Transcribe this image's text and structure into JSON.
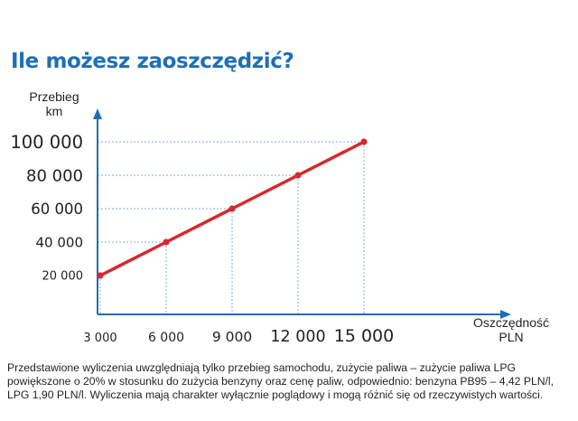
{
  "title": "Ile możesz zaoszczędzić?",
  "chart_data": {
    "type": "line",
    "title": "Ile możesz zaoszczędzić?",
    "ylabel_lines": [
      "Przebieg",
      "km"
    ],
    "xlabel_lines": [
      "Oszczędność",
      "PLN"
    ],
    "x": [
      3000,
      6000,
      9000,
      12000,
      15000
    ],
    "y": [
      20000,
      40000,
      60000,
      80000,
      100000
    ],
    "x_tick_labels": [
      "3 000",
      "6 000",
      "9 000",
      "12 000",
      "15 000"
    ],
    "y_tick_labels": [
      "20 000",
      "40 000",
      "60 000",
      "80 000",
      "100 000"
    ],
    "grid": "dotted guide lines from each point to both axes",
    "colors": {
      "line": "#d7282f",
      "axis": "#1f6fb5",
      "guides": "#7fb0dd"
    }
  },
  "footnote": "Przedstawione wyliczenia uwzględniają tylko przebieg samochodu, zużycie paliwa – zużycie paliwa LPG powiększone o 20% w stosunku do zużycia benzyny oraz cenę paliw, odpowiednio: benzyna PB95 – 4,42 PLN/l, LPG 1,90 PLN/l. Wyliczenia mają charakter wyłącznie poglądowy i mogą różnić się od rzeczywistych wartości."
}
